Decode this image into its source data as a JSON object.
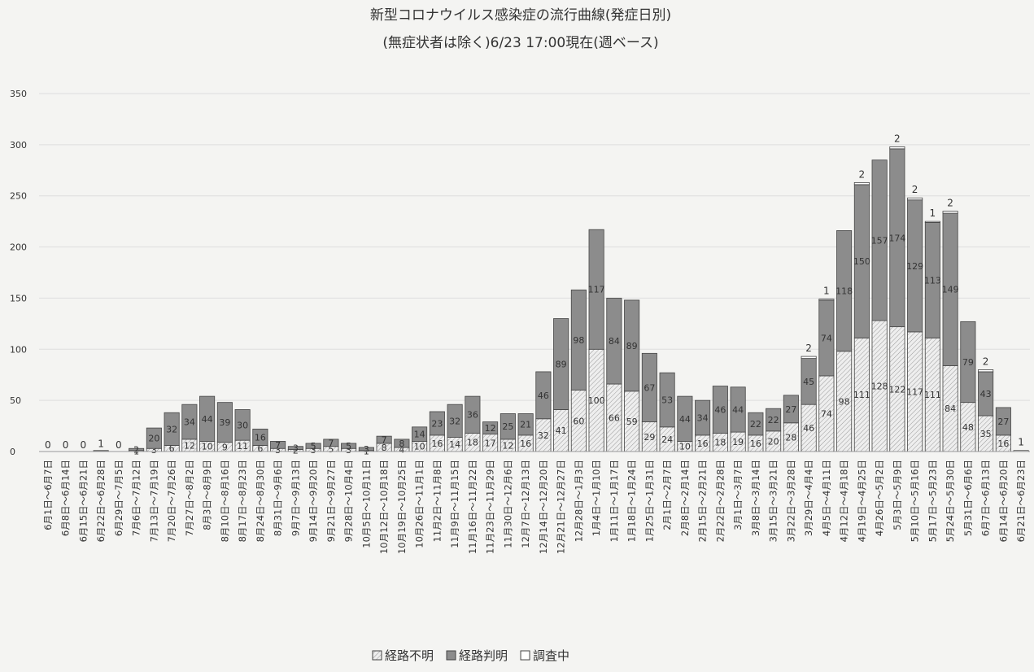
{
  "chart_data": {
    "type": "stacked_bar",
    "title": "新型コロナウイルス感染症の流行曲線(発症日別)",
    "subtitle": "(無症状者は除く)6/23 17:00現在(週ベース)",
    "categories": [
      "6月1日～6月7日",
      "6月8日～6月14日",
      "6月15日～6月21日",
      "6月22日～6月28日",
      "6月29日～7月5日",
      "7月6日～7月12日",
      "7月13日～7月19日",
      "7月20日～7月26日",
      "7月27日～8月2日",
      "8月3日～8月9日",
      "8月10日～8月16日",
      "8月17日～8月23日",
      "8月24日～8月30日",
      "8月31日～9月6日",
      "9月7日～9月13日",
      "9月14日～9月20日",
      "9月21日～9月27日",
      "9月28日～10月4日",
      "10月5日～10月11日",
      "10月12日～10月18日",
      "10月19日～10月25日",
      "10月26日～11月1日",
      "11月2日～11月8日",
      "11月9日～11月15日",
      "11月16日～11月22日",
      "11月23日～11月29日",
      "11月30日～12月6日",
      "12月7日～12月13日",
      "12月14日～12月20日",
      "12月21日～12月27日",
      "12月28日～1月3日",
      "1月4日～1月10日",
      "1月11日～1月17日",
      "1月18日～1月24日",
      "1月25日～1月31日",
      "2月1日～2月7日",
      "2月8日～2月14日",
      "2月15日～2月21日",
      "2月22日～2月28日",
      "3月1日～3月7日",
      "3月8日～3月14日",
      "3月15日～3月21日",
      "3月22日～3月28日",
      "3月29日～4月4日",
      "4月5日～4月11日",
      "4月12日～4月18日",
      "4月19日～4月25日",
      "4月26日～5月2日",
      "5月3日～5月9日",
      "5月10日～5月16日",
      "5月17日～5月23日",
      "5月24日～5月30日",
      "5月31日～6月6日",
      "6月7日～6月13日",
      "6月14日～6月20日",
      "6月21日～6月23日"
    ],
    "series": [
      {
        "name": "経路不明",
        "color": "#e6e6e6",
        "values": [
          0,
          0,
          0,
          0,
          0,
          1,
          3,
          6,
          12,
          10,
          9,
          11,
          6,
          3,
          2,
          3,
          5,
          3,
          1,
          8,
          4,
          10,
          16,
          14,
          18,
          17,
          12,
          16,
          32,
          41,
          60,
          100,
          66,
          59,
          29,
          24,
          10,
          16,
          18,
          19,
          16,
          20,
          28,
          46,
          74,
          98,
          111,
          128,
          122,
          117,
          111,
          84,
          48,
          35,
          16,
          0
        ]
      },
      {
        "name": "経路判明",
        "color": "#8c8c8c",
        "values": [
          0,
          0,
          0,
          1,
          0,
          2,
          20,
          32,
          34,
          44,
          39,
          30,
          16,
          7,
          3,
          5,
          7,
          5,
          3,
          7,
          8,
          14,
          23,
          32,
          36,
          12,
          25,
          21,
          46,
          89,
          98,
          117,
          84,
          89,
          67,
          53,
          44,
          34,
          46,
          44,
          22,
          22,
          27,
          45,
          74,
          118,
          150,
          157,
          174,
          129,
          113,
          149,
          79,
          43,
          27,
          0
        ]
      },
      {
        "name": "調査中",
        "color": "#ffffff",
        "values": [
          0,
          0,
          0,
          0,
          0,
          0,
          0,
          0,
          0,
          0,
          0,
          0,
          0,
          0,
          0,
          0,
          0,
          0,
          0,
          0,
          0,
          0,
          0,
          0,
          0,
          0,
          0,
          0,
          0,
          0,
          0,
          0,
          0,
          0,
          0,
          0,
          0,
          0,
          0,
          0,
          0,
          0,
          0,
          2,
          1,
          0,
          2,
          0,
          2,
          2,
          1,
          2,
          0,
          2,
          0,
          1
        ]
      }
    ],
    "ylim": [
      0,
      350
    ],
    "yticks": [
      0,
      50,
      100,
      150,
      200,
      250,
      300,
      350
    ],
    "grid": true
  }
}
